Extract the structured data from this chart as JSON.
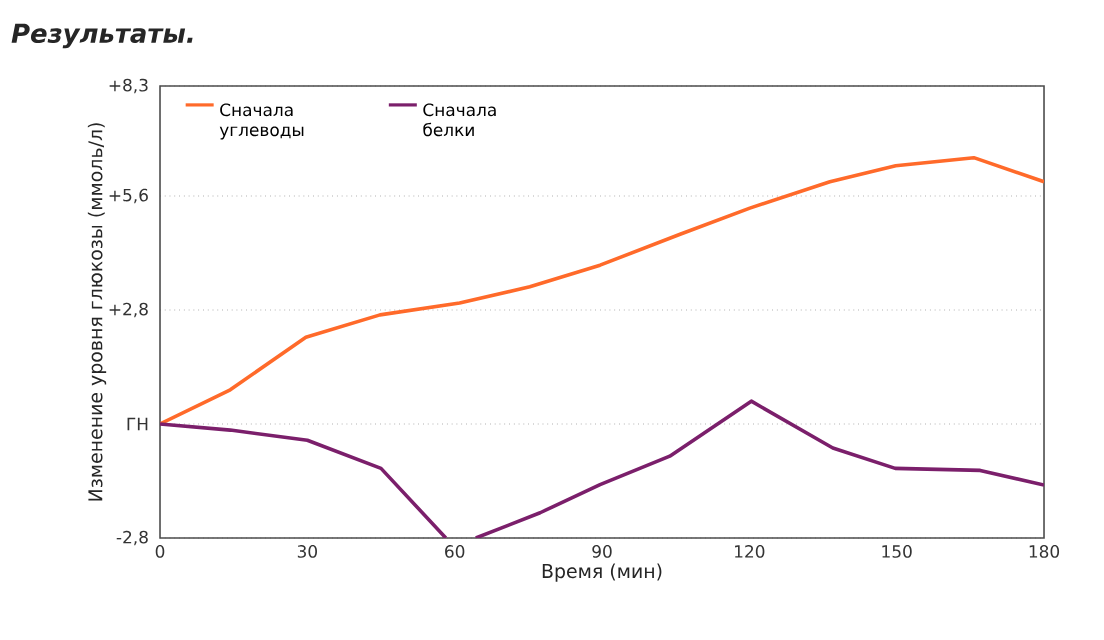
{
  "chart_data": {
    "type": "line",
    "title": "Результаты.",
    "xlabel": "Время (мин)",
    "ylabel": "Изменение уровня глюкозы (ммоль/л)",
    "xlim": [
      0,
      180
    ],
    "xticks": [
      0,
      30,
      60,
      90,
      120,
      150,
      180
    ],
    "ylim": [
      -2.8,
      8.3
    ],
    "yticks": [
      {
        "value": -2.8,
        "label": "-2,8"
      },
      {
        "value": 0,
        "label": "ГН"
      },
      {
        "value": 2.8,
        "label": "+2,8"
      },
      {
        "value": 5.6,
        "label": "+5,6"
      },
      {
        "value": 8.3,
        "label": "+8,3"
      }
    ],
    "grid": "y",
    "legend": "top left",
    "line_style": "solid",
    "series": [
      {
        "name": "Сначала углеводы",
        "color": "#ff6a2a",
        "x": [
          0,
          14.3,
          29.7,
          44.8,
          61,
          75.3,
          89.6,
          105.9,
          120.1,
          136.4,
          149.8,
          165.7,
          180
        ],
        "values": [
          0,
          0.84,
          2.13,
          2.68,
          2.97,
          3.37,
          3.9,
          4.66,
          5.3,
          5.95,
          6.34,
          6.54,
          5.95
        ]
      },
      {
        "name": "Сначала белки",
        "color": "#7b1f6b",
        "x": [
          0,
          14.3,
          30,
          45,
          58.2,
          61,
          64.3,
          77.4,
          89.6,
          103.8,
          120.4,
          137,
          149.7,
          167,
          180
        ],
        "values": [
          0,
          -0.15,
          -0.4,
          -1.09,
          -2.8,
          null,
          -2.8,
          -2.18,
          -1.49,
          -0.79,
          0.56,
          -0.59,
          -1.09,
          -1.14,
          -1.5
        ]
      }
    ]
  }
}
